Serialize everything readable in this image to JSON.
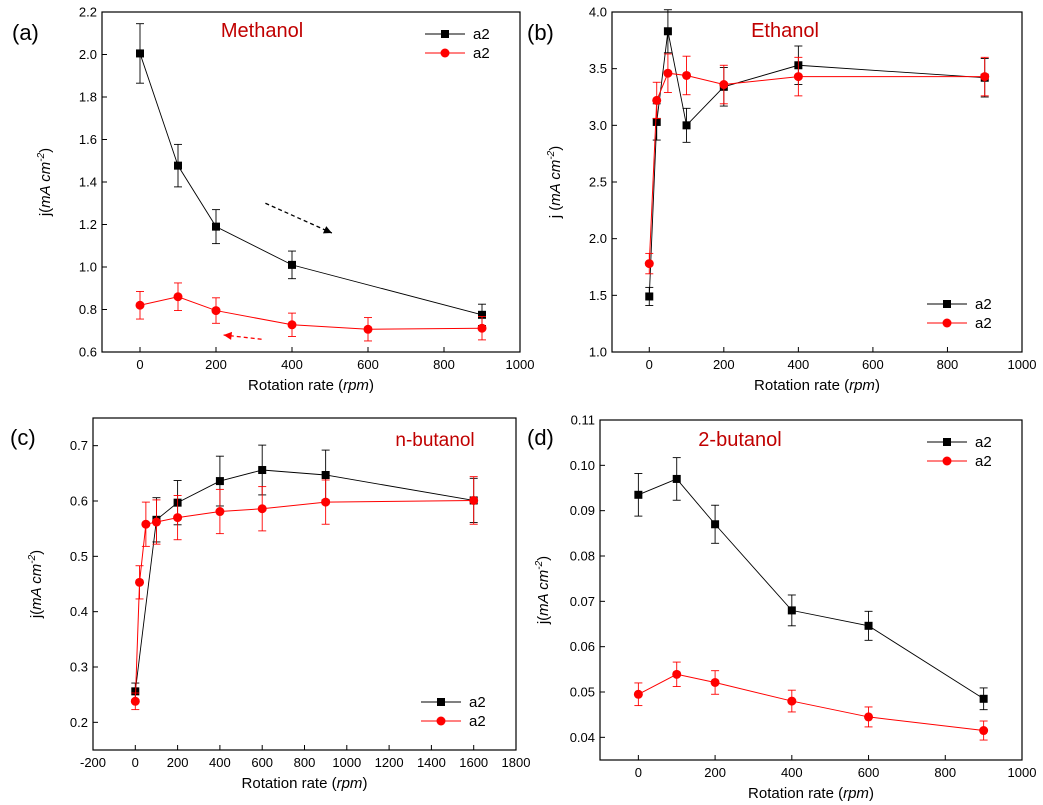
{
  "colors": {
    "series_a": "#000000",
    "series_b": "#ff0000",
    "title": "#c00000",
    "axis": "#000000"
  },
  "chart_data": [
    {
      "panel_label": "(a)",
      "title": "Methanol",
      "type": "line",
      "xlabel": {
        "prefix": "Rotation rate (",
        "unit": "rpm",
        "suffix": ")"
      },
      "ylabel": {
        "prefix": "j(",
        "unit": "mA cm",
        "sup": "-2",
        "suffix": ")"
      },
      "xlim": [
        -100,
        1000
      ],
      "ylim": [
        0.6,
        2.2
      ],
      "xticks": [
        0,
        200,
        400,
        600,
        800,
        1000
      ],
      "xtick_labels": [
        "0",
        "200",
        "400",
        "600",
        "800",
        "1000"
      ],
      "yticks": [
        0.6,
        0.8,
        1.0,
        1.2,
        1.4,
        1.6,
        1.8,
        2.0,
        2.2
      ],
      "ytick_labels": [
        "0.6",
        "0.8",
        "1.0",
        "1.2",
        "1.4",
        "1.6",
        "1.8",
        "2.0",
        "2.2"
      ],
      "legend": "top-right",
      "arrows": [
        {
          "color": "black",
          "from": [
            330,
            1.3
          ],
          "to": [
            505,
            1.16
          ]
        },
        {
          "color": "red",
          "from": [
            320,
            0.66
          ],
          "to": [
            220,
            0.68
          ]
        }
      ],
      "series": [
        {
          "name": "a2",
          "marker": "square",
          "color": "#000000",
          "x": [
            0,
            100,
            200,
            400,
            900
          ],
          "y": [
            2.005,
            1.477,
            1.19,
            1.01,
            0.775
          ],
          "err": [
            0.14,
            0.1,
            0.08,
            0.065,
            0.05
          ]
        },
        {
          "name": "a2",
          "marker": "circle",
          "color": "#ff0000",
          "x": [
            0,
            100,
            200,
            400,
            600,
            900
          ],
          "y": [
            0.82,
            0.86,
            0.795,
            0.728,
            0.707,
            0.712
          ],
          "err": [
            0.065,
            0.065,
            0.06,
            0.055,
            0.055,
            0.055
          ]
        }
      ]
    },
    {
      "panel_label": "(b)",
      "title": "Ethanol",
      "type": "line",
      "xlabel": {
        "prefix": "Rotation rate (",
        "unit": "rpm",
        "suffix": ")"
      },
      "ylabel": {
        "prefix": "j (",
        "unit": "mA cm",
        "sup": "-2",
        "suffix": ")"
      },
      "xlim": [
        -100,
        1000
      ],
      "ylim": [
        1.0,
        4.0
      ],
      "xticks": [
        0,
        200,
        400,
        600,
        800,
        1000
      ],
      "xtick_labels": [
        "0",
        "200",
        "400",
        "600",
        "800",
        "1000"
      ],
      "yticks": [
        1.0,
        1.5,
        2.0,
        2.5,
        3.0,
        3.5,
        4.0
      ],
      "ytick_labels": [
        "1.0",
        "1.5",
        "2.0",
        "2.5",
        "3.0",
        "3.5",
        "4.0"
      ],
      "legend": "bottom-right",
      "series": [
        {
          "name": "a2",
          "marker": "square",
          "color": "#000000",
          "x": [
            0,
            20,
            50,
            100,
            200,
            400,
            900
          ],
          "y": [
            1.49,
            3.03,
            3.83,
            3.0,
            3.34,
            3.53,
            3.42
          ],
          "err": [
            0.08,
            0.16,
            0.19,
            0.15,
            0.17,
            0.17,
            0.17
          ]
        },
        {
          "name": "a2",
          "marker": "circle",
          "color": "#ff0000",
          "x": [
            0,
            20,
            50,
            100,
            200,
            400,
            900
          ],
          "y": [
            1.78,
            3.22,
            3.46,
            3.44,
            3.36,
            3.43,
            3.43
          ],
          "err": [
            0.09,
            0.16,
            0.17,
            0.17,
            0.17,
            0.17,
            0.17
          ]
        }
      ]
    },
    {
      "panel_label": "(c)",
      "title": "n-butanol",
      "type": "line",
      "xlabel": {
        "prefix": "Rotation rate (",
        "unit": "rpm",
        "suffix": ")"
      },
      "ylabel": {
        "prefix": "j(",
        "unit": "mA cm",
        "sup": "-2",
        "suffix": ")"
      },
      "xlim": [
        -200,
        1800
      ],
      "ylim": [
        0.15,
        0.75
      ],
      "xticks": [
        -200,
        0,
        200,
        400,
        600,
        800,
        1000,
        1200,
        1400,
        1600,
        1800
      ],
      "xtick_labels": [
        "-200",
        "0",
        "200",
        "400",
        "600",
        "800",
        "1000",
        "1200",
        "1400",
        "1600",
        "1800"
      ],
      "yticks": [
        0.2,
        0.3,
        0.4,
        0.5,
        0.6,
        0.7
      ],
      "ytick_labels": [
        "0.2",
        "0.3",
        "0.4",
        "0.5",
        "0.6",
        "0.7"
      ],
      "legend": "bottom-right",
      "series": [
        {
          "name": "a2",
          "marker": "square",
          "color": "#000000",
          "x": [
            0,
            100,
            200,
            400,
            600,
            900,
            1600
          ],
          "y": [
            0.256,
            0.566,
            0.597,
            0.636,
            0.656,
            0.647,
            0.601
          ],
          "err": [
            0.015,
            0.04,
            0.04,
            0.045,
            0.045,
            0.045,
            0.04
          ]
        },
        {
          "name": "a2",
          "marker": "circle",
          "color": "#ff0000",
          "x": [
            0,
            20,
            50,
            100,
            200,
            400,
            600,
            900,
            1600
          ],
          "y": [
            0.238,
            0.453,
            0.558,
            0.562,
            0.57,
            0.581,
            0.586,
            0.598,
            0.601
          ],
          "err": [
            0.015,
            0.03,
            0.04,
            0.04,
            0.04,
            0.04,
            0.04,
            0.04,
            0.043
          ]
        }
      ]
    },
    {
      "panel_label": "(d)",
      "title": "2-butanol",
      "type": "line",
      "xlabel": {
        "prefix": "Rotation rate (",
        "unit": "rpm",
        "suffix": ")"
      },
      "ylabel": {
        "prefix": "j(",
        "unit": "mA cm",
        "sup": "-2",
        "suffix": ")"
      },
      "xlim": [
        -100,
        1000
      ],
      "ylim": [
        0.035,
        0.11
      ],
      "xticks": [
        0,
        200,
        400,
        600,
        800,
        1000
      ],
      "xtick_labels": [
        "0",
        "200",
        "400",
        "600",
        "800",
        "1000"
      ],
      "yticks": [
        0.04,
        0.05,
        0.06,
        0.07,
        0.08,
        0.09,
        0.1,
        0.11
      ],
      "ytick_labels": [
        "0.04",
        "0.05",
        "0.06",
        "0.07",
        "0.08",
        "0.09",
        "0.10",
        "0.11"
      ],
      "legend": "top-right",
      "series": [
        {
          "name": "a2",
          "marker": "square",
          "color": "#000000",
          "x": [
            0,
            100,
            200,
            400,
            600,
            900
          ],
          "y": [
            0.0935,
            0.097,
            0.087,
            0.068,
            0.0646,
            0.0485
          ],
          "err": [
            0.0047,
            0.0047,
            0.0042,
            0.0034,
            0.0032,
            0.0024
          ]
        },
        {
          "name": "a2",
          "marker": "circle",
          "color": "#ff0000",
          "x": [
            0,
            100,
            200,
            400,
            600,
            900
          ],
          "y": [
            0.0495,
            0.0539,
            0.0521,
            0.048,
            0.0445,
            0.0415
          ],
          "err": [
            0.0025,
            0.0027,
            0.0026,
            0.0024,
            0.0022,
            0.0021
          ]
        }
      ]
    }
  ]
}
